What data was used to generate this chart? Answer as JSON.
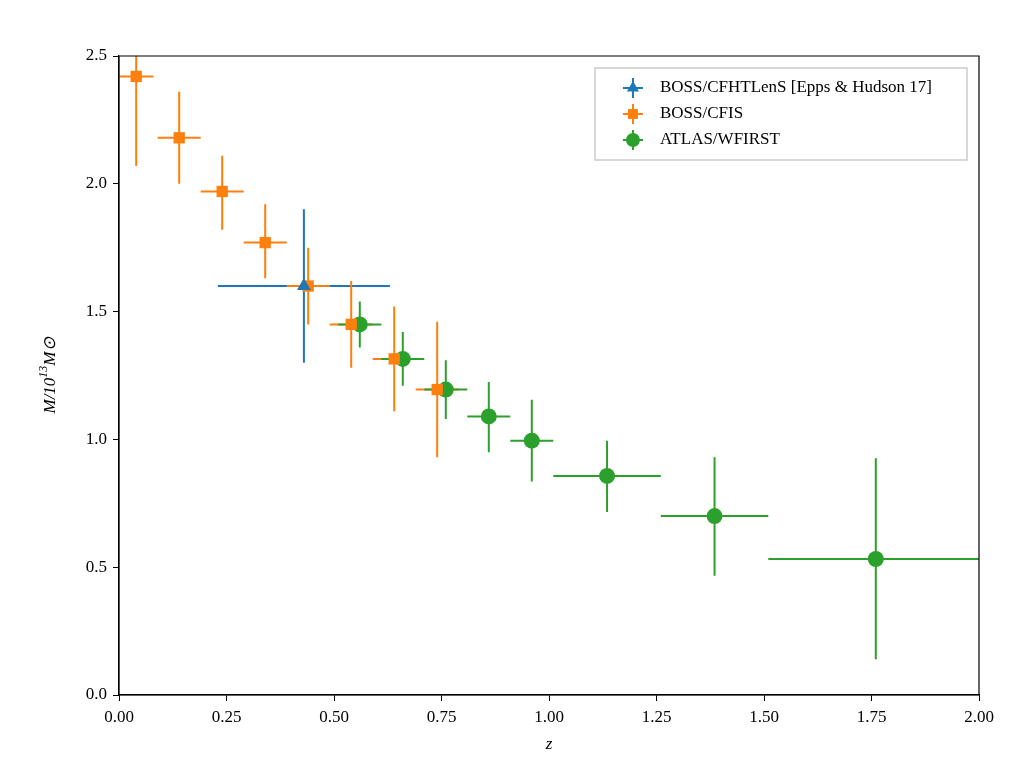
{
  "chart_data": {
    "type": "scatter",
    "xlabel": "z",
    "ylabel": "M/10$^{13}$M⊙",
    "xlim": [
      0,
      2
    ],
    "ylim": [
      0,
      2.5
    ],
    "xticks": [
      {
        "value": 0,
        "label": "0.00"
      },
      {
        "value": 0.25,
        "label": "0.25"
      },
      {
        "value": 0.5,
        "label": "0.50"
      },
      {
        "value": 0.75,
        "label": "0.75"
      },
      {
        "value": 1,
        "label": "1.00"
      },
      {
        "value": 1.25,
        "label": "1.25"
      },
      {
        "value": 1.5,
        "label": "1.50"
      },
      {
        "value": 1.75,
        "label": "1.75"
      },
      {
        "value": 2,
        "label": "2.00"
      }
    ],
    "yticks": [
      {
        "value": 0,
        "label": "0.0"
      },
      {
        "value": 0.5,
        "label": "0.5"
      },
      {
        "value": 1,
        "label": "1.0"
      },
      {
        "value": 1.5,
        "label": "1.5"
      },
      {
        "value": 2,
        "label": "2.0"
      },
      {
        "value": 2.5,
        "label": "2.5"
      }
    ],
    "grid": false,
    "legend": "top right",
    "series": [
      {
        "name": "BOSS/CFHTLenS [Epps & Hudson 17]",
        "color": "#1f77b4",
        "marker": "triangle",
        "x": [
          0.43
        ],
        "values": [
          1.6
        ],
        "errors": [
          0.3
        ],
        "xerrors": [
          0.2
        ]
      },
      {
        "name": "BOSS/CFIS",
        "color": "#ff7f0e",
        "marker": "square",
        "x": [
          0.04,
          0.14,
          0.24,
          0.34,
          0.44,
          0.54,
          0.64,
          0.74
        ],
        "values": [
          2.42,
          2.18,
          1.97,
          1.77,
          1.6,
          1.45,
          1.315,
          1.195
        ],
        "errors": [
          [
            2.07,
            2.5
          ],
          [
            2.0,
            2.36
          ],
          [
            1.82,
            2.11
          ],
          [
            1.63,
            1.92
          ],
          [
            1.45,
            1.75
          ],
          [
            1.28,
            1.62
          ],
          [
            1.11,
            1.52
          ],
          [
            0.93,
            1.46
          ]
        ],
        "xerrors": [
          0.04,
          0.05,
          0.05,
          0.05,
          0.05,
          0.05,
          0.05,
          0.05
        ]
      },
      {
        "name": "ATLAS/WFIRST",
        "color": "#2ca02c",
        "marker": "circle",
        "x": [
          0.56,
          0.66,
          0.76,
          0.86,
          0.96,
          1.135,
          1.385,
          1.76
        ],
        "values": [
          1.45,
          1.315,
          1.195,
          1.09,
          0.995,
          0.857,
          0.7,
          0.532
        ],
        "errors": [
          [
            1.36,
            1.54
          ],
          [
            1.21,
            1.42
          ],
          [
            1.08,
            1.31
          ],
          [
            0.95,
            1.225
          ],
          [
            0.835,
            1.155
          ],
          [
            0.716,
            0.995
          ],
          [
            0.467,
            0.93
          ],
          [
            0.14,
            0.926
          ]
        ],
        "xerrors": [
          0.05,
          0.05,
          0.05,
          0.05,
          0.05,
          0.125,
          0.125,
          [
            1.51,
            2.0
          ]
        ]
      }
    ]
  }
}
